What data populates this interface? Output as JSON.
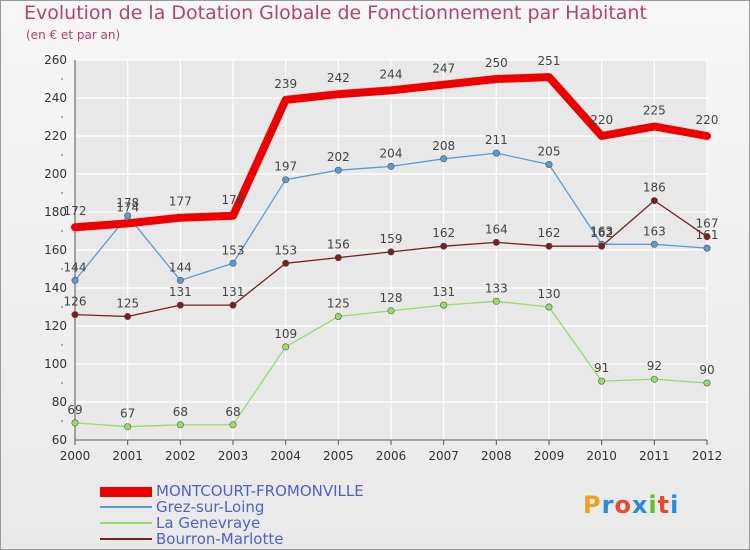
{
  "title": "Evolution de la Dotation Globale de Fonctionnement par Habitant",
  "subtitle": "(en € et par an)",
  "logo_text": "Proxiti",
  "colors": {
    "title": "#b34275",
    "grid": "#ffffff",
    "axis": "#555555",
    "legend_text": "#5060d0"
  },
  "chart_data": {
    "type": "line",
    "title": "Evolution de la Dotation Globale de Fonctionnement par Habitant",
    "subtitle": "(en € et par an)",
    "xlabel": "",
    "ylabel": "",
    "categories": [
      "2000",
      "2001",
      "2002",
      "2003",
      "2004",
      "2005",
      "2006",
      "2007",
      "2008",
      "2009",
      "2010",
      "2011",
      "2012"
    ],
    "ylim": [
      60,
      260
    ],
    "yticks": [
      60,
      80,
      100,
      120,
      140,
      160,
      180,
      200,
      220,
      240,
      260
    ],
    "grid": true,
    "legend_position": "bottom-left",
    "series": [
      {
        "name": "MONTCOURT-FROMONVILLE",
        "color": "#ee0000",
        "width": 8,
        "marker": false,
        "values": [
          172,
          174,
          177,
          178,
          239,
          242,
          244,
          247,
          250,
          251,
          220,
          225,
          220
        ]
      },
      {
        "name": "Grez-sur-Loing",
        "color": "#5b9bd5",
        "width": 1.3,
        "marker": true,
        "values": [
          144,
          178,
          144,
          153,
          197,
          202,
          204,
          208,
          211,
          205,
          163,
          163,
          161
        ]
      },
      {
        "name": "La Genevraye",
        "color": "#99dd66",
        "width": 1.3,
        "marker": true,
        "values": [
          69,
          67,
          68,
          68,
          109,
          125,
          128,
          131,
          133,
          130,
          91,
          92,
          90
        ]
      },
      {
        "name": "Bourron-Marlotte",
        "color": "#7a1e1e",
        "width": 1.3,
        "marker": true,
        "values": [
          126,
          125,
          131,
          131,
          153,
          156,
          159,
          162,
          164,
          162,
          162,
          186,
          167
        ]
      }
    ]
  }
}
